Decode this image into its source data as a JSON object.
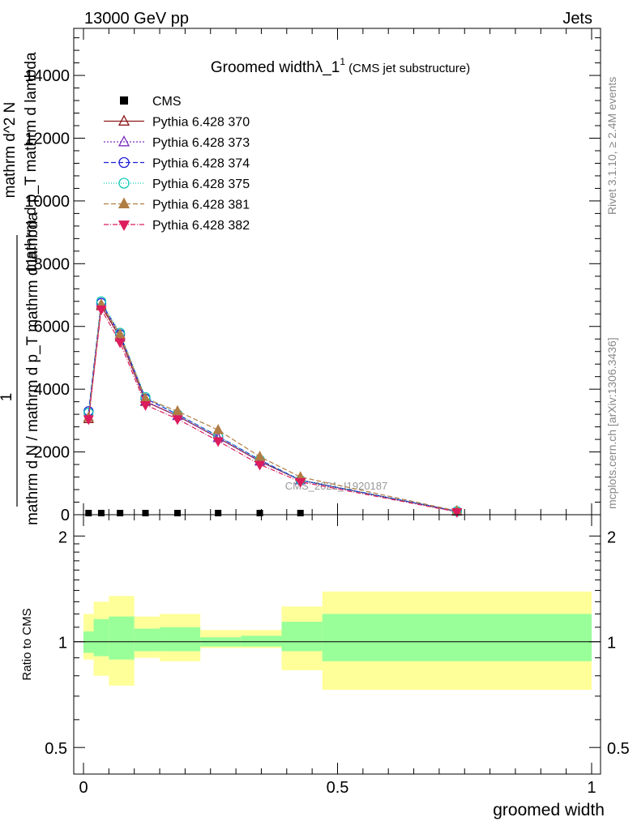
{
  "header": {
    "left": "13000 GeV pp",
    "right": "Jets"
  },
  "side_labels": {
    "rivet": "Rivet 3.1.10, ≥ 2.4M events",
    "mcplots": "mcplots.cern.ch [arXiv:1306.3436]"
  },
  "watermark": "CMS_2021_I1920187",
  "chart_data": [
    {
      "type": "line",
      "title": "Groomed width",
      "title_symbol": "λ_1",
      "title_superscript": "1",
      "subtitle": "(CMS jet substructure)",
      "ylabel_lines": [
        "mathrm d N / mathrm d p_T mathrm d lambda",
        "1",
        "mathrm d^2 N",
        "mathrm d p_T mathrm d lambda"
      ],
      "xlabel": "groomed width",
      "xlim": [
        0,
        1
      ],
      "ylim": [
        0,
        15500
      ],
      "y_ticks": [
        0,
        2000,
        4000,
        6000,
        8000,
        10000,
        12000,
        14000
      ],
      "y_tick_labels": [
        "0",
        "2000",
        "4000",
        "6000",
        "8000",
        "10000",
        "12000",
        "14000"
      ],
      "grid": false,
      "legend_position": "top-left",
      "series": [
        {
          "name": "CMS",
          "color": "#000000",
          "marker": "square",
          "dash": "none",
          "x": [
            0.01,
            0.035,
            0.072,
            0.122,
            0.185,
            0.265,
            0.347,
            0.427
          ],
          "y": [
            0,
            0,
            0,
            0,
            0,
            0,
            0,
            0
          ]
        },
        {
          "name": "Pythia 6.428 370",
          "color": "#8b1a1a",
          "marker": "triangle-open",
          "dash": "none",
          "x": [
            0.01,
            0.035,
            0.072,
            0.122,
            0.185,
            0.265,
            0.347,
            0.427,
            0.735
          ],
          "y": [
            3050,
            6650,
            5650,
            3600,
            3150,
            2450,
            1700,
            1100,
            100
          ]
        },
        {
          "name": "Pythia 6.428 373",
          "color": "#7b2fbe",
          "marker": "triangle-open",
          "dash": "2,2",
          "x": [
            0.01,
            0.035,
            0.072,
            0.122,
            0.185,
            0.265,
            0.347,
            0.427,
            0.735
          ],
          "y": [
            3100,
            6700,
            5700,
            3620,
            3150,
            2450,
            1700,
            1100,
            110
          ]
        },
        {
          "name": "Pythia 6.428 374",
          "color": "#1f1fd6",
          "marker": "circle-open",
          "dash": "6,3",
          "x": [
            0.01,
            0.035,
            0.072,
            0.122,
            0.185,
            0.265,
            0.347,
            0.427,
            0.735
          ],
          "y": [
            3300,
            6750,
            5750,
            3700,
            3200,
            2500,
            1750,
            1100,
            110
          ]
        },
        {
          "name": "Pythia 6.428 375",
          "color": "#12c9b5",
          "marker": "circle-open",
          "dash": "1,2",
          "x": [
            0.01,
            0.035,
            0.072,
            0.122,
            0.185,
            0.265,
            0.347,
            0.427,
            0.735
          ],
          "y": [
            3250,
            6800,
            5800,
            3750,
            3200,
            2500,
            1750,
            1100,
            110
          ]
        },
        {
          "name": "Pythia 6.428 381",
          "color": "#b07d44",
          "marker": "triangle-filled",
          "dash": "6,3",
          "x": [
            0.01,
            0.035,
            0.072,
            0.122,
            0.185,
            0.265,
            0.347,
            0.427,
            0.735
          ],
          "y": [
            3100,
            6700,
            5750,
            3700,
            3300,
            2700,
            1850,
            1200,
            120
          ]
        },
        {
          "name": "Pythia 6.428 382",
          "color": "#dc1c5c",
          "marker": "triangle-down-filled",
          "dash": "6,2,1,2",
          "x": [
            0.01,
            0.035,
            0.072,
            0.122,
            0.185,
            0.265,
            0.347,
            0.427,
            0.735
          ],
          "y": [
            3050,
            6550,
            5500,
            3500,
            3050,
            2350,
            1600,
            1050,
            90
          ]
        }
      ]
    },
    {
      "type": "area",
      "ylabel": "Ratio to CMS",
      "xlabel": "groomed width",
      "xlim": [
        0,
        1
      ],
      "ylim": [
        0.42,
        2.3
      ],
      "y_scale": "log",
      "y_ticks": [
        0.5,
        1,
        2
      ],
      "y_tick_labels": [
        "0.5",
        "1",
        "2"
      ],
      "x_ticks": [
        0,
        0.5,
        1
      ],
      "x_tick_labels": [
        "0",
        "0.5",
        "1"
      ],
      "reference_line": 1,
      "band_colors": {
        "inner": "#99ff99",
        "outer": "#ffff99"
      },
      "bins": [
        {
          "x0": 0.0,
          "x1": 0.02,
          "inner": [
            0.93,
            1.07
          ],
          "outer": [
            0.89,
            1.2
          ]
        },
        {
          "x0": 0.02,
          "x1": 0.05,
          "inner": [
            0.91,
            1.16
          ],
          "outer": [
            0.8,
            1.3
          ]
        },
        {
          "x0": 0.05,
          "x1": 0.1,
          "inner": [
            0.89,
            1.18
          ],
          "outer": [
            0.75,
            1.35
          ]
        },
        {
          "x0": 0.1,
          "x1": 0.15,
          "inner": [
            0.94,
            1.09
          ],
          "outer": [
            0.9,
            1.18
          ]
        },
        {
          "x0": 0.15,
          "x1": 0.23,
          "inner": [
            0.94,
            1.1
          ],
          "outer": [
            0.88,
            1.2
          ]
        },
        {
          "x0": 0.23,
          "x1": 0.31,
          "inner": [
            0.97,
            1.03
          ],
          "outer": [
            0.96,
            1.08
          ]
        },
        {
          "x0": 0.31,
          "x1": 0.39,
          "inner": [
            0.97,
            1.04
          ],
          "outer": [
            0.96,
            1.08
          ]
        },
        {
          "x0": 0.39,
          "x1": 0.47,
          "inner": [
            0.94,
            1.14
          ],
          "outer": [
            0.83,
            1.26
          ]
        },
        {
          "x0": 0.47,
          "x1": 1.0,
          "inner": [
            0.88,
            1.2
          ],
          "outer": [
            0.73,
            1.39
          ]
        }
      ]
    }
  ]
}
